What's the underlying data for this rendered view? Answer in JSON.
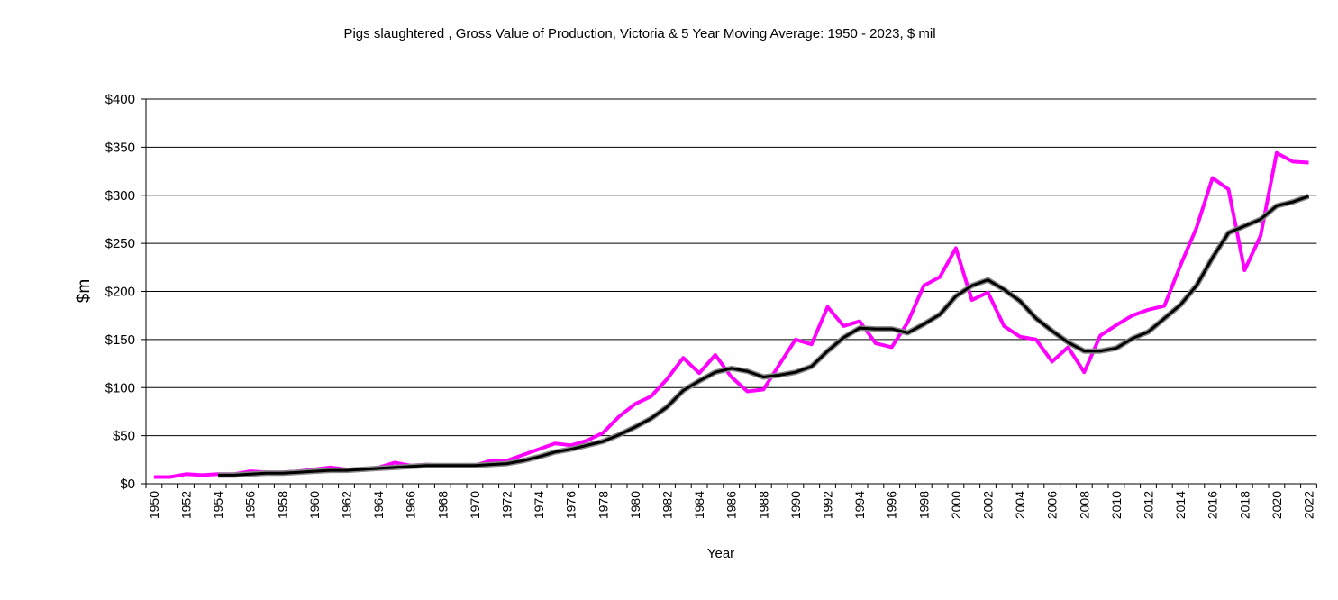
{
  "chart_data": {
    "type": "line",
    "title": "Pigs slaughtered , Gross Value of Production, Victoria & 5 Year Moving Average: 1950 - 2023, $ mil",
    "xlabel": "Year",
    "ylabel": "$m",
    "ylim": [
      0,
      400
    ],
    "yticks": [
      "$0",
      "$50",
      "$100",
      "$150",
      "$200",
      "$250",
      "$300",
      "$350",
      "$400"
    ],
    "grid": "horizontal",
    "legend": "none",
    "x_start": 1950,
    "x_end": 2022,
    "x_tick_step": 2,
    "series": [
      {
        "color": "#ff00ff",
        "x_start": 1950,
        "values": [
          7,
          7,
          10,
          9,
          10,
          10,
          13,
          12,
          12,
          13,
          15,
          17,
          15,
          15,
          17,
          22,
          19,
          20,
          19,
          19,
          19,
          24,
          24,
          30,
          36,
          42,
          40,
          45,
          53,
          70,
          83,
          91,
          109,
          131,
          115,
          134,
          111,
          96,
          98,
          124,
          150,
          145,
          184,
          164,
          169,
          146,
          142,
          168,
          206,
          215,
          245,
          191,
          199,
          164,
          153,
          150,
          127,
          142,
          116,
          154,
          165,
          175,
          181,
          185,
          227,
          266,
          318,
          306,
          222,
          258,
          344,
          335,
          334
        ]
      },
      {
        "color": "#000000",
        "x_start": 1954,
        "values": [
          9,
          9,
          10,
          11,
          11,
          12,
          13,
          14,
          14,
          15,
          16,
          17,
          18,
          19,
          19,
          19,
          19,
          20,
          21,
          24,
          28,
          33,
          36,
          40,
          44,
          51,
          59,
          68,
          80,
          97,
          107,
          116,
          120,
          117,
          111,
          113,
          116,
          122,
          138,
          152,
          162,
          161,
          161,
          157,
          166,
          176,
          195,
          206,
          212,
          202,
          190,
          172,
          159,
          147,
          138,
          138,
          141,
          151,
          158,
          172,
          186,
          206,
          235,
          261,
          268,
          275,
          289,
          293,
          299
        ]
      }
    ]
  }
}
